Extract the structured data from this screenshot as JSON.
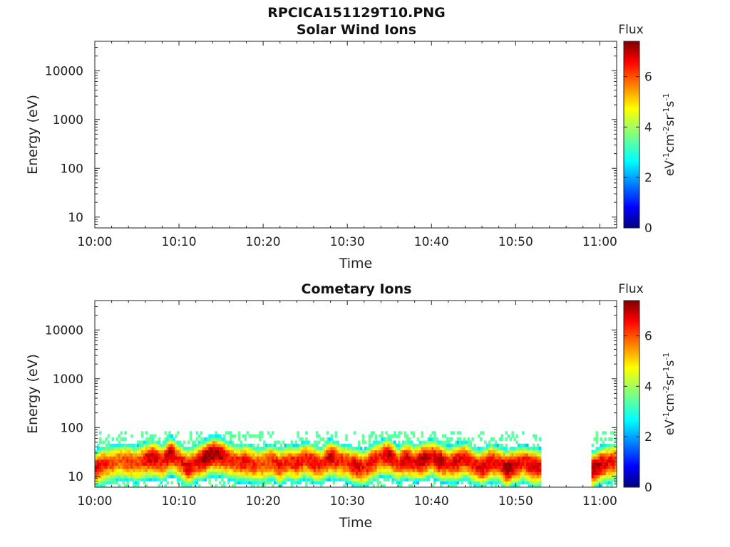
{
  "figure": {
    "title": "RPCICA151129T10.PNG",
    "time_axis": {
      "label": "Time",
      "ticks": [
        "10:00",
        "10:10",
        "10:20",
        "10:30",
        "10:40",
        "10:50",
        "11:00"
      ],
      "range_minutes": [
        0,
        62
      ]
    },
    "energy_axis": {
      "label": "Energy (eV)",
      "scale": "log",
      "ticks": [
        "10",
        "100",
        "1000",
        "10000"
      ],
      "range_ev": [
        6,
        40000
      ]
    },
    "colorbar": {
      "title": "Flux",
      "unit_label": "eV-1cm-2sr-1s-1",
      "ticks": [
        "0",
        "2",
        "4",
        "6"
      ],
      "range": [
        0,
        7.4
      ],
      "colormap": "jet"
    }
  },
  "chart_data": [
    {
      "type": "heatmap",
      "title": "Solar Wind Ions",
      "xlabel": "Time",
      "ylabel": "Energy (eV)",
      "yscale": "log",
      "ylim": [
        6,
        40000
      ],
      "xlim": [
        "10:00",
        "11:02"
      ],
      "zlim": [
        0,
        7.4
      ],
      "features": []
    },
    {
      "type": "heatmap",
      "title": "Cometary Ions",
      "xlabel": "Time",
      "ylabel": "Energy (eV)",
      "yscale": "log",
      "ylim": [
        6,
        40000
      ],
      "xlim": [
        "10:00",
        "11:02"
      ],
      "zlim": [
        0,
        7.4
      ],
      "segments": [
        {
          "start": "10:00",
          "end": "10:53"
        },
        {
          "start": "10:59",
          "end": "11:02"
        }
      ],
      "peak_energy_trace": {
        "time_min": [
          0,
          1,
          2,
          3,
          4,
          5,
          6,
          7,
          8,
          9,
          10,
          11,
          12,
          13,
          14,
          15,
          16,
          17,
          18,
          19,
          20,
          21,
          22,
          23,
          24,
          25,
          26,
          27,
          28,
          29,
          30,
          31,
          32,
          33,
          34,
          35,
          36,
          37,
          38,
          39,
          40,
          41,
          42,
          43,
          44,
          45,
          46,
          47,
          48,
          49,
          50,
          51,
          52,
          53,
          59,
          60,
          61,
          62
        ],
        "peak_ev": [
          15,
          18,
          20,
          22,
          21,
          19,
          23,
          25,
          20,
          30,
          22,
          16,
          20,
          24,
          30,
          28,
          23,
          20,
          21,
          18,
          19,
          22,
          17,
          21,
          19,
          24,
          20,
          18,
          26,
          22,
          20,
          17,
          16,
          21,
          26,
          28,
          19,
          24,
          20,
          23,
          26,
          22,
          19,
          21,
          24,
          18,
          16,
          21,
          19,
          15,
          18,
          20,
          17,
          16,
          14,
          18,
          20,
          22
        ],
        "peak_flux": [
          6.8,
          6.3,
          6.0,
          5.8,
          6.2,
          5.9,
          6.6,
          7.0,
          6.3,
          7.2,
          6.2,
          6.8,
          6.5,
          7.2,
          7.3,
          7.1,
          6.2,
          6.3,
          6.6,
          6.1,
          6.0,
          6.2,
          6.5,
          6.1,
          6.6,
          6.3,
          6.7,
          6.2,
          7.0,
          6.3,
          6.2,
          6.9,
          6.4,
          6.6,
          6.3,
          7.1,
          6.2,
          7.0,
          6.5,
          7.2,
          6.6,
          7.2,
          6.3,
          6.8,
          6.5,
          6.4,
          6.8,
          6.7,
          6.3,
          7.3,
          6.8,
          6.4,
          6.9,
          6.6,
          7.1,
          7.0,
          6.5,
          6.3
        ]
      },
      "sparse_noise_upper_ev": 80
    }
  ]
}
